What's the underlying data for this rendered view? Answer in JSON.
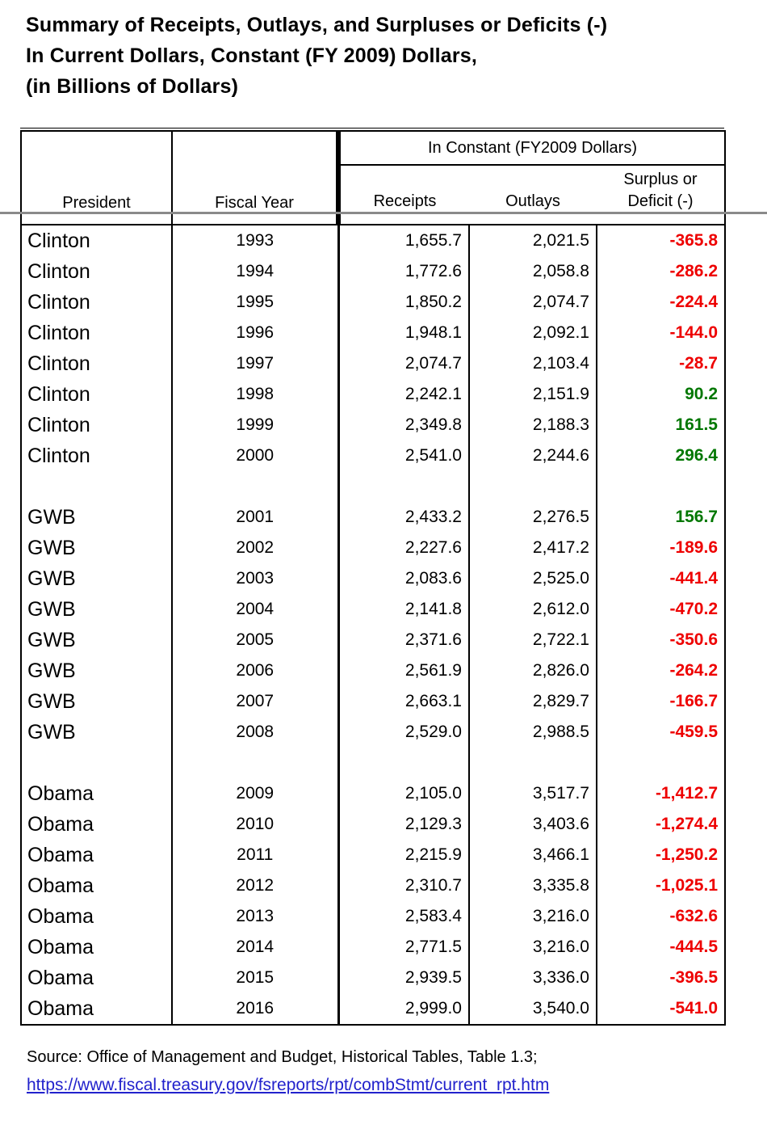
{
  "title": {
    "lines": [
      "Summary of Receipts, Outlays, and Surpluses or Deficits (-)",
      "In Current Dollars, Constant (FY 2009) Dollars,",
      "(in Billions of Dollars)"
    ]
  },
  "table": {
    "headers": {
      "president": "President",
      "fiscal_year": "Fiscal Year",
      "group": "In Constant (FY2009 Dollars)",
      "receipts": "Receipts",
      "outlays": "Outlays",
      "surplus_line1": "Surplus or",
      "surplus_line2": "Deficit (-)"
    },
    "rows": [
      {
        "president": "Clinton",
        "year": "1993",
        "receipts": "1,655.7",
        "outlays": "2,021.5",
        "balance": "-365.8",
        "type": "deficit"
      },
      {
        "president": "Clinton",
        "year": "1994",
        "receipts": "1,772.6",
        "outlays": "2,058.8",
        "balance": "-286.2",
        "type": "deficit"
      },
      {
        "president": "Clinton",
        "year": "1995",
        "receipts": "1,850.2",
        "outlays": "2,074.7",
        "balance": "-224.4",
        "type": "deficit"
      },
      {
        "president": "Clinton",
        "year": "1996",
        "receipts": "1,948.1",
        "outlays": "2,092.1",
        "balance": "-144.0",
        "type": "deficit"
      },
      {
        "president": "Clinton",
        "year": "1997",
        "receipts": "2,074.7",
        "outlays": "2,103.4",
        "balance": "-28.7",
        "type": "deficit"
      },
      {
        "president": "Clinton",
        "year": "1998",
        "receipts": "2,242.1",
        "outlays": "2,151.9",
        "balance": "90.2",
        "type": "surplus"
      },
      {
        "president": "Clinton",
        "year": "1999",
        "receipts": "2,349.8",
        "outlays": "2,188.3",
        "balance": "161.5",
        "type": "surplus"
      },
      {
        "president": "Clinton",
        "year": "2000",
        "receipts": "2,541.0",
        "outlays": "2,244.6",
        "balance": "296.4",
        "type": "surplus"
      },
      {
        "spacer": true
      },
      {
        "president": "GWB",
        "year": "2001",
        "receipts": "2,433.2",
        "outlays": "2,276.5",
        "balance": "156.7",
        "type": "surplus"
      },
      {
        "president": "GWB",
        "year": "2002",
        "receipts": "2,227.6",
        "outlays": "2,417.2",
        "balance": "-189.6",
        "type": "deficit"
      },
      {
        "president": "GWB",
        "year": "2003",
        "receipts": "2,083.6",
        "outlays": "2,525.0",
        "balance": "-441.4",
        "type": "deficit"
      },
      {
        "president": "GWB",
        "year": "2004",
        "receipts": "2,141.8",
        "outlays": "2,612.0",
        "balance": "-470.2",
        "type": "deficit"
      },
      {
        "president": "GWB",
        "year": "2005",
        "receipts": "2,371.6",
        "outlays": "2,722.1",
        "balance": "-350.6",
        "type": "deficit"
      },
      {
        "president": "GWB",
        "year": "2006",
        "receipts": "2,561.9",
        "outlays": "2,826.0",
        "balance": "-264.2",
        "type": "deficit"
      },
      {
        "president": "GWB",
        "year": "2007",
        "receipts": "2,663.1",
        "outlays": "2,829.7",
        "balance": "-166.7",
        "type": "deficit"
      },
      {
        "president": "GWB",
        "year": "2008",
        "receipts": "2,529.0",
        "outlays": "2,988.5",
        "balance": "-459.5",
        "type": "deficit"
      },
      {
        "spacer": true
      },
      {
        "president": "Obama",
        "year": "2009",
        "receipts": "2,105.0",
        "outlays": "3,517.7",
        "balance": "-1,412.7",
        "type": "deficit"
      },
      {
        "president": "Obama",
        "year": "2010",
        "receipts": "2,129.3",
        "outlays": "3,403.6",
        "balance": "-1,274.4",
        "type": "deficit"
      },
      {
        "president": "Obama",
        "year": "2011",
        "receipts": "2,215.9",
        "outlays": "3,466.1",
        "balance": "-1,250.2",
        "type": "deficit"
      },
      {
        "president": "Obama",
        "year": "2012",
        "receipts": "2,310.7",
        "outlays": "3,335.8",
        "balance": "-1,025.1",
        "type": "deficit"
      },
      {
        "president": "Obama",
        "year": "2013",
        "receipts": "2,583.4",
        "outlays": "3,216.0",
        "balance": "-632.6",
        "type": "deficit"
      },
      {
        "president": "Obama",
        "year": "2014",
        "receipts": "2,771.5",
        "outlays": "3,216.0",
        "balance": "-444.5",
        "type": "deficit"
      },
      {
        "president": "Obama",
        "year": "2015",
        "receipts": "2,939.5",
        "outlays": "3,336.0",
        "balance": "-396.5",
        "type": "deficit"
      },
      {
        "president": "Obama",
        "year": "2016",
        "receipts": "2,999.0",
        "outlays": "3,540.0",
        "balance": "-541.0",
        "type": "deficit"
      }
    ]
  },
  "footer": {
    "source": "Source: Office of Management and Budget, Historical Tables, Table 1.3;",
    "link": "https://www.fiscal.treasury.gov/fsreports/rpt/combStmt/current_rpt.htm"
  },
  "colors": {
    "deficit_red": "#ee0000",
    "surplus_green": "#007700",
    "link_blue": "#2222cc"
  }
}
